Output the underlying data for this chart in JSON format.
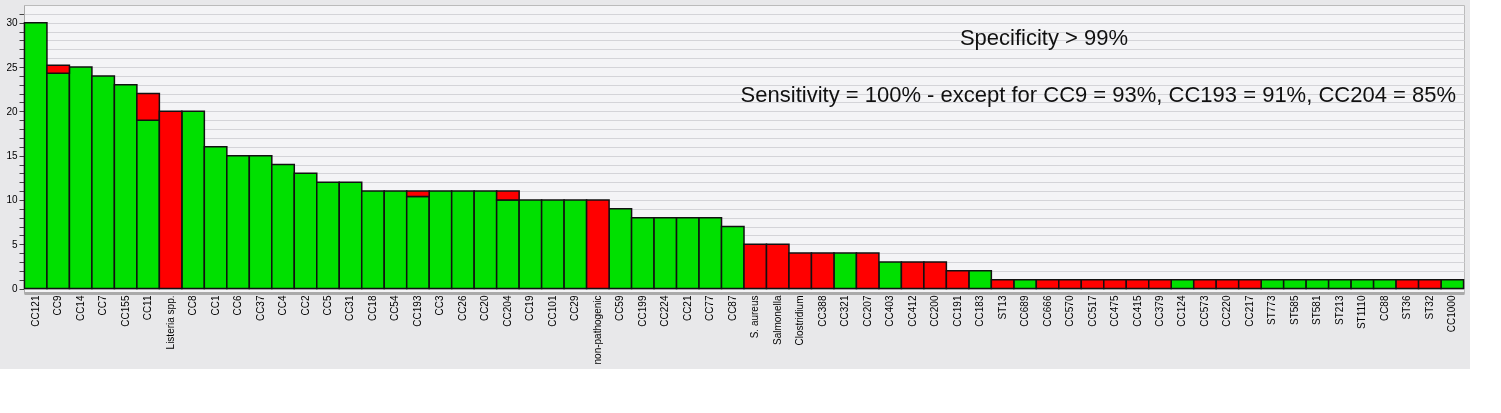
{
  "chart_data": {
    "type": "bar",
    "stacked": true,
    "categories": [
      "CC121",
      "CC9",
      "CC14",
      "CC7",
      "CC155",
      "CC11",
      "Listeria spp.",
      "CC8",
      "CC1",
      "CC6",
      "CC37",
      "CC4",
      "CC2",
      "CC5",
      "CC31",
      "CC18",
      "CC54",
      "CC193",
      "CC3",
      "CC26",
      "CC20",
      "CC204",
      "CC19",
      "CC101",
      "CC29",
      "non-pathogenic",
      "CC59",
      "CC199",
      "CC224",
      "CC21",
      "CC77",
      "CC87",
      "S. aureus",
      "Salmonella",
      "Clostridium",
      "CC388",
      "CC321",
      "CC207",
      "CC403",
      "CC412",
      "CC200",
      "CC191",
      "CC183",
      "ST13",
      "CC689",
      "CC666",
      "CC570",
      "CC517",
      "CC475",
      "CC415",
      "CC379",
      "CC124",
      "CC573",
      "CC220",
      "CC217",
      "ST773",
      "ST585",
      "ST581",
      "ST213",
      "ST1110",
      "CC88",
      "ST36",
      "ST32",
      "CC1000"
    ],
    "series": [
      {
        "color": "#00e000",
        "values": [
          30,
          24.3,
          25,
          24,
          23,
          19,
          null,
          20,
          16,
          15,
          15,
          14,
          13,
          12,
          12,
          11,
          11,
          10.4,
          11,
          11,
          11,
          10,
          10,
          10,
          10,
          null,
          9,
          8,
          8,
          8,
          8,
          7,
          null,
          null,
          null,
          null,
          4,
          null,
          3,
          null,
          null,
          null,
          2,
          null,
          1,
          null,
          null,
          null,
          null,
          null,
          null,
          1,
          null,
          null,
          null,
          1,
          1,
          1,
          1,
          1,
          1,
          null,
          null,
          1
        ]
      },
      {
        "color": "#ff0000",
        "values": [
          null,
          0.9,
          null,
          null,
          null,
          3,
          20,
          null,
          null,
          null,
          null,
          null,
          null,
          null,
          null,
          null,
          null,
          0.6,
          null,
          null,
          null,
          1,
          null,
          null,
          null,
          10,
          null,
          null,
          null,
          null,
          null,
          null,
          5,
          5,
          4,
          4,
          null,
          4,
          null,
          3,
          3,
          2,
          null,
          1,
          null,
          1,
          1,
          1,
          1,
          1,
          1,
          null,
          1,
          1,
          1,
          null,
          null,
          null,
          null,
          null,
          null,
          1,
          1,
          null
        ]
      }
    ],
    "ylim": [
      -0.5,
      32
    ],
    "yticks": [
      0,
      {
        "value": 1,
        "label": null
      },
      {
        "value": 2,
        "label": null
      },
      {
        "value": 3,
        "label": null
      },
      {
        "value": 4,
        "label": null
      },
      5,
      {
        "value": 6,
        "label": null
      },
      {
        "value": 7,
        "label": null
      },
      {
        "value": 8,
        "label": null
      },
      {
        "value": 9,
        "label": null
      },
      10,
      {
        "value": 11,
        "label": null
      },
      {
        "value": 12,
        "label": null
      },
      {
        "value": 13,
        "label": null
      },
      {
        "value": 14,
        "label": null
      },
      15,
      {
        "value": 16,
        "label": null
      },
      {
        "value": 17,
        "label": null
      },
      {
        "value": 18,
        "label": null
      },
      {
        "value": 19,
        "label": null
      },
      20,
      {
        "value": 21,
        "label": null
      },
      {
        "value": 22,
        "label": null
      },
      {
        "value": 23,
        "label": null
      },
      {
        "value": 24,
        "label": null
      },
      25,
      {
        "value": 26,
        "label": null
      },
      {
        "value": 27,
        "label": null
      },
      {
        "value": 28,
        "label": null
      },
      {
        "value": 29,
        "label": null
      },
      30,
      {
        "value": 31,
        "label": null
      }
    ],
    "grid": "y",
    "annotations": [
      "Specificity > 99%",
      "Sensitivity = 100% - except for CC9 = 93%, CC193 = 91%, CC204 = 85%"
    ]
  }
}
